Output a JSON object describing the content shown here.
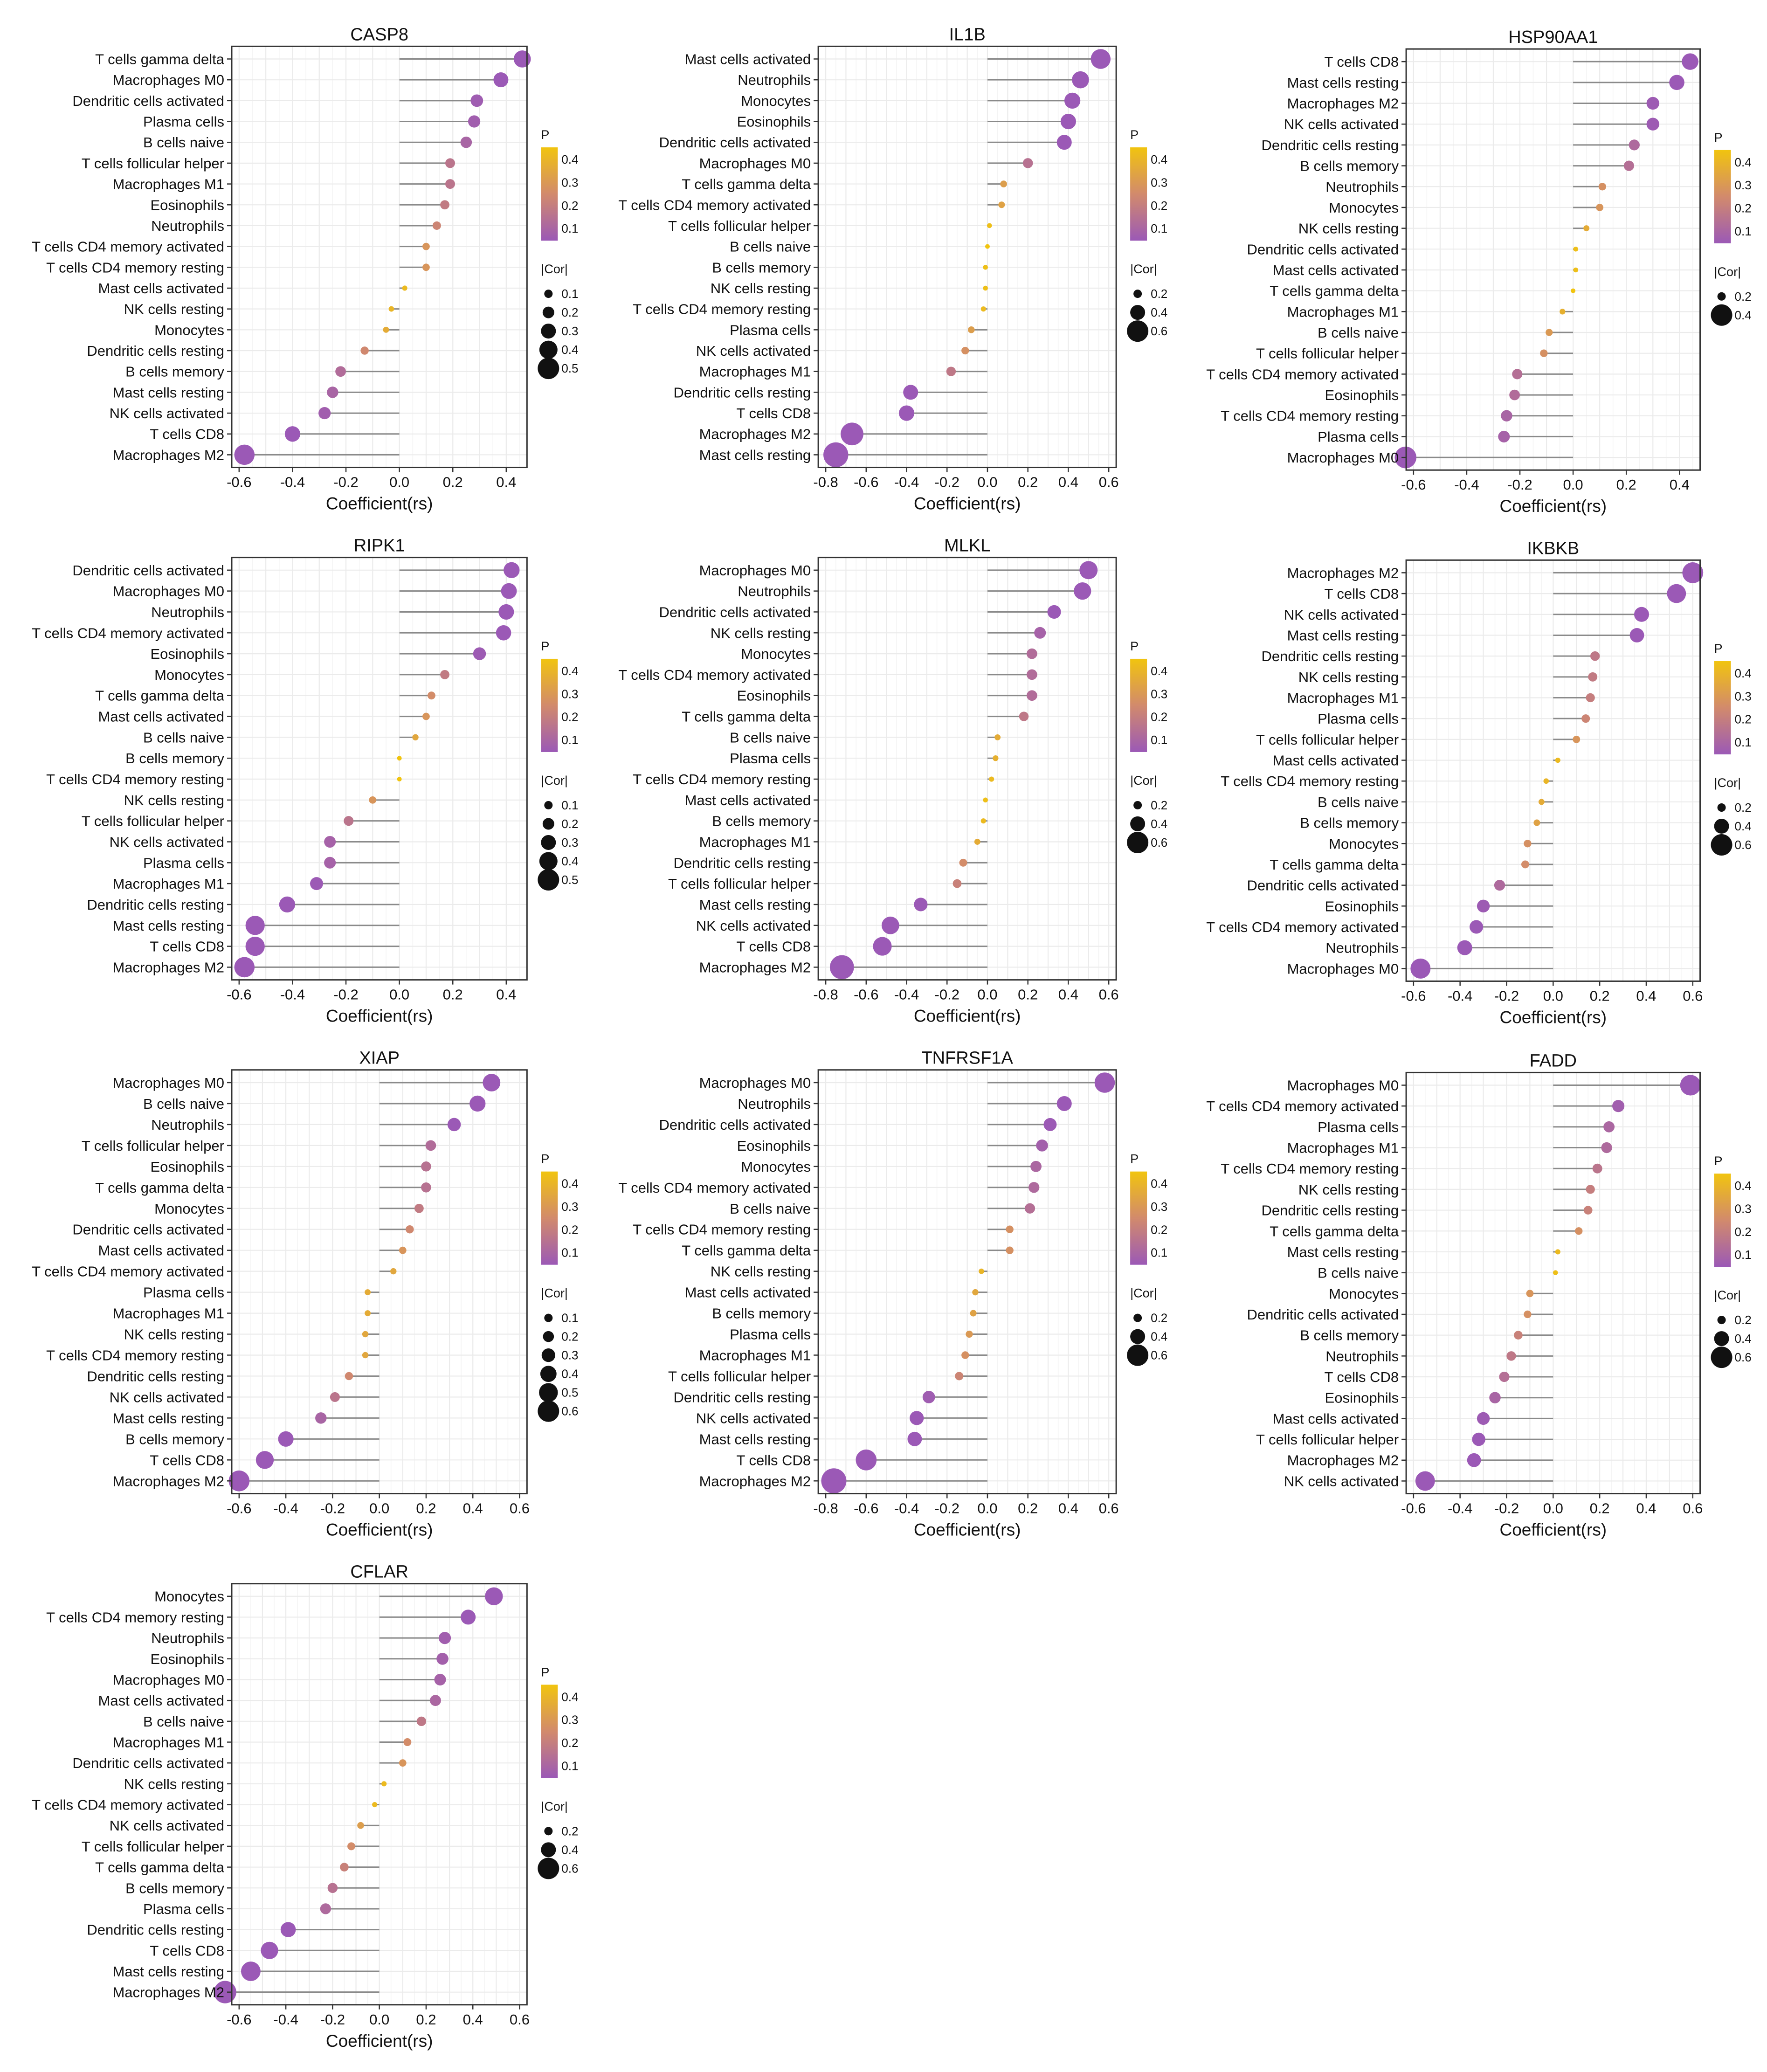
{
  "figure": {
    "xlabel": "Coefficient(rs)",
    "legend_p_title": "P",
    "legend_cor_title": "|Cor|",
    "color_low": "#9b59b6",
    "color_mid": "#d28a6c",
    "color_high": "#f1c40f",
    "lollipop_line_color": "#8a8a8a"
  },
  "chart_data": [
    {
      "type": "lollipop",
      "title": "CASP8",
      "xlim": [
        -0.6,
        0.45
      ],
      "xticks": [
        -0.6,
        -0.4,
        -0.2,
        0.0,
        0.2,
        0.4
      ],
      "categories": [
        "T cells gamma delta",
        "Macrophages M0",
        "Dendritic cells activated",
        "Plasma cells",
        "B cells naive",
        "T cells follicular helper",
        "Macrophages M1",
        "Eosinophils",
        "Neutrophils",
        "T cells CD4 memory activated",
        "T cells CD4 memory resting",
        "Mast cells activated",
        "NK cells resting",
        "Monocytes",
        "Dendritic cells resting",
        "B cells memory",
        "Mast cells resting",
        "NK cells activated",
        "T cells CD8",
        "Macrophages M2"
      ],
      "values": [
        0.46,
        0.38,
        0.29,
        0.28,
        0.25,
        0.19,
        0.19,
        0.17,
        0.14,
        0.1,
        0.1,
        0.02,
        -0.03,
        -0.05,
        -0.13,
        -0.22,
        -0.25,
        -0.28,
        -0.4,
        -0.58
      ],
      "p_legend": [
        "0.4",
        "0.3",
        "0.2",
        "0.1"
      ],
      "cor_legend": [
        "0.1",
        "0.2",
        "0.3",
        "0.4",
        "0.5"
      ]
    },
    {
      "type": "lollipop",
      "title": "IL1B",
      "xlim": [
        -0.8,
        0.6
      ],
      "xticks": [
        -0.8,
        -0.6,
        -0.4,
        -0.2,
        0.0,
        0.2,
        0.4,
        0.6
      ],
      "categories": [
        "Mast cells activated",
        "Neutrophils",
        "Monocytes",
        "Eosinophils",
        "Dendritic cells activated",
        "Macrophages M0",
        "T cells gamma delta",
        "T cells CD4 memory activated",
        "T cells follicular helper",
        "B cells naive",
        "B cells memory",
        "NK cells resting",
        "T cells CD4 memory resting",
        "Plasma cells",
        "NK cells activated",
        "Macrophages M1",
        "Dendritic cells resting",
        "T cells CD8",
        "Macrophages M2",
        "Mast cells resting"
      ],
      "values": [
        0.56,
        0.46,
        0.42,
        0.4,
        0.38,
        0.2,
        0.08,
        0.07,
        0.01,
        0.0,
        -0.01,
        -0.01,
        -0.02,
        -0.08,
        -0.11,
        -0.18,
        -0.38,
        -0.4,
        -0.67,
        -0.75
      ],
      "p_legend": [
        "0.4",
        "0.3",
        "0.2",
        "0.1"
      ],
      "cor_legend": [
        "0.2",
        "0.4",
        "0.6"
      ]
    },
    {
      "type": "lollipop",
      "title": "HSP90AA1",
      "xlim": [
        -0.6,
        0.45
      ],
      "xticks": [
        -0.6,
        -0.4,
        -0.2,
        0.0,
        0.2,
        0.4
      ],
      "categories": [
        "T cells CD8",
        "Mast cells resting",
        "Macrophages M2",
        "NK cells activated",
        "Dendritic cells resting",
        "B cells memory",
        "Neutrophils",
        "Monocytes",
        "NK cells resting",
        "Dendritic cells activated",
        "Mast cells activated",
        "T cells gamma delta",
        "Macrophages M1",
        "B cells naive",
        "T cells follicular helper",
        "T cells CD4 memory activated",
        "Eosinophils",
        "T cells CD4 memory resting",
        "Plasma cells",
        "Macrophages M0"
      ],
      "values": [
        0.44,
        0.39,
        0.3,
        0.3,
        0.23,
        0.21,
        0.11,
        0.1,
        0.05,
        0.01,
        0.01,
        0.0,
        -0.04,
        -0.09,
        -0.11,
        -0.21,
        -0.22,
        -0.25,
        -0.26,
        -0.63
      ],
      "p_legend": [
        "0.4",
        "0.3",
        "0.2",
        "0.1"
      ],
      "cor_legend": [
        "0.2",
        "0.4"
      ]
    },
    {
      "type": "lollipop",
      "title": "RIPK1",
      "xlim": [
        -0.6,
        0.45
      ],
      "xticks": [
        -0.6,
        -0.4,
        -0.2,
        0.0,
        0.2,
        0.4
      ],
      "categories": [
        "Dendritic cells activated",
        "Macrophages M0",
        "Neutrophils",
        "T cells CD4 memory activated",
        "Eosinophils",
        "Monocytes",
        "T cells gamma delta",
        "Mast cells activated",
        "B cells naive",
        "B cells memory",
        "T cells CD4 memory resting",
        "NK cells resting",
        "T cells follicular helper",
        "NK cells activated",
        "Plasma cells",
        "Macrophages M1",
        "Dendritic cells resting",
        "Mast cells resting",
        "T cells CD8",
        "Macrophages M2"
      ],
      "values": [
        0.42,
        0.41,
        0.4,
        0.39,
        0.3,
        0.17,
        0.12,
        0.1,
        0.06,
        0.0,
        0.0,
        -0.1,
        -0.19,
        -0.26,
        -0.26,
        -0.31,
        -0.42,
        -0.54,
        -0.54,
        -0.58
      ],
      "p_legend": [
        "0.4",
        "0.3",
        "0.2",
        "0.1"
      ],
      "cor_legend": [
        "0.1",
        "0.2",
        "0.3",
        "0.4",
        "0.5"
      ]
    },
    {
      "type": "lollipop",
      "title": "MLKL",
      "xlim": [
        -0.8,
        0.6
      ],
      "xticks": [
        -0.8,
        -0.6,
        -0.4,
        -0.2,
        0.0,
        0.2,
        0.4,
        0.6
      ],
      "categories": [
        "Macrophages M0",
        "Neutrophils",
        "Dendritic cells activated",
        "NK cells resting",
        "Monocytes",
        "T cells CD4 memory activated",
        "Eosinophils",
        "T cells gamma delta",
        "B cells naive",
        "Plasma cells",
        "T cells CD4 memory resting",
        "Mast cells activated",
        "B cells memory",
        "Macrophages M1",
        "Dendritic cells resting",
        "T cells follicular helper",
        "Mast cells resting",
        "NK cells activated",
        "T cells CD8",
        "Macrophages M2"
      ],
      "values": [
        0.5,
        0.47,
        0.33,
        0.26,
        0.22,
        0.22,
        0.22,
        0.18,
        0.05,
        0.04,
        0.02,
        -0.01,
        -0.02,
        -0.05,
        -0.12,
        -0.15,
        -0.33,
        -0.48,
        -0.52,
        -0.72
      ],
      "p_legend": [
        "0.4",
        "0.3",
        "0.2",
        "0.1"
      ],
      "cor_legend": [
        "0.2",
        "0.4",
        "0.6"
      ]
    },
    {
      "type": "lollipop",
      "title": "IKBKB",
      "xlim": [
        -0.6,
        0.6
      ],
      "xticks": [
        -0.6,
        -0.4,
        -0.2,
        0.0,
        0.2,
        0.4,
        0.6
      ],
      "categories": [
        "Macrophages M2",
        "T cells CD8",
        "NK cells activated",
        "Mast cells resting",
        "Dendritic cells resting",
        "NK cells resting",
        "Macrophages M1",
        "Plasma cells",
        "T cells follicular helper",
        "Mast cells activated",
        "T cells CD4 memory resting",
        "B cells naive",
        "B cells memory",
        "Monocytes",
        "T cells gamma delta",
        "Dendritic cells activated",
        "Eosinophils",
        "T cells CD4 memory activated",
        "Neutrophils",
        "Macrophages M0"
      ],
      "values": [
        0.6,
        0.53,
        0.38,
        0.36,
        0.18,
        0.17,
        0.16,
        0.14,
        0.1,
        0.02,
        -0.03,
        -0.05,
        -0.07,
        -0.11,
        -0.12,
        -0.23,
        -0.3,
        -0.33,
        -0.38,
        -0.57
      ],
      "p_legend": [
        "0.4",
        "0.3",
        "0.2",
        "0.1"
      ],
      "cor_legend": [
        "0.2",
        "0.4",
        "0.6"
      ]
    },
    {
      "type": "lollipop",
      "title": "XIAP",
      "xlim": [
        -0.6,
        0.6
      ],
      "xticks": [
        -0.6,
        -0.4,
        -0.2,
        0.0,
        0.2,
        0.4,
        0.6
      ],
      "categories": [
        "Macrophages M0",
        "B cells naive",
        "Neutrophils",
        "T cells follicular helper",
        "Eosinophils",
        "T cells gamma delta",
        "Monocytes",
        "Dendritic cells activated",
        "Mast cells activated",
        "T cells CD4 memory activated",
        "Plasma cells",
        "Macrophages M1",
        "NK cells resting",
        "T cells CD4 memory resting",
        "Dendritic cells resting",
        "NK cells activated",
        "Mast cells resting",
        "B cells memory",
        "T cells CD8",
        "Macrophages M2"
      ],
      "values": [
        0.48,
        0.42,
        0.32,
        0.22,
        0.2,
        0.2,
        0.17,
        0.13,
        0.1,
        0.06,
        -0.05,
        -0.05,
        -0.06,
        -0.06,
        -0.13,
        -0.19,
        -0.25,
        -0.4,
        -0.49,
        -0.6
      ],
      "p_legend": [
        "0.4",
        "0.3",
        "0.2",
        "0.1"
      ],
      "cor_legend": [
        "0.1",
        "0.2",
        "0.3",
        "0.4",
        "0.5",
        "0.6"
      ]
    },
    {
      "type": "lollipop",
      "title": "TNFRSF1A",
      "xlim": [
        -0.8,
        0.6
      ],
      "xticks": [
        -0.8,
        -0.6,
        -0.4,
        -0.2,
        0.0,
        0.2,
        0.4,
        0.6
      ],
      "categories": [
        "Macrophages M0",
        "Neutrophils",
        "Dendritic cells activated",
        "Eosinophils",
        "Monocytes",
        "T cells CD4 memory activated",
        "B cells naive",
        "T cells CD4 memory resting",
        "T cells gamma delta",
        "NK cells resting",
        "Mast cells activated",
        "B cells memory",
        "Plasma cells",
        "Macrophages M1",
        "T cells follicular helper",
        "Dendritic cells resting",
        "NK cells activated",
        "Mast cells resting",
        "T cells CD8",
        "Macrophages M2"
      ],
      "values": [
        0.58,
        0.38,
        0.31,
        0.27,
        0.24,
        0.23,
        0.21,
        0.11,
        0.11,
        -0.03,
        -0.06,
        -0.07,
        -0.09,
        -0.11,
        -0.14,
        -0.29,
        -0.35,
        -0.36,
        -0.6,
        -0.76
      ],
      "p_legend": [
        "0.4",
        "0.3",
        "0.2",
        "0.1"
      ],
      "cor_legend": [
        "0.2",
        "0.4",
        "0.6"
      ]
    },
    {
      "type": "lollipop",
      "title": "FADD",
      "xlim": [
        -0.6,
        0.6
      ],
      "xticks": [
        -0.6,
        -0.4,
        -0.2,
        0.0,
        0.2,
        0.4,
        0.6
      ],
      "categories": [
        "Macrophages M0",
        "T cells CD4 memory activated",
        "Plasma cells",
        "Macrophages M1",
        "T cells CD4 memory resting",
        "NK cells resting",
        "Dendritic cells resting",
        "T cells gamma delta",
        "Mast cells resting",
        "B cells naive",
        "Monocytes",
        "Dendritic cells activated",
        "B cells memory",
        "Neutrophils",
        "T cells CD8",
        "Eosinophils",
        "Mast cells activated",
        "T cells follicular helper",
        "Macrophages M2",
        "NK cells activated"
      ],
      "values": [
        0.59,
        0.28,
        0.24,
        0.23,
        0.19,
        0.16,
        0.15,
        0.11,
        0.02,
        0.01,
        -0.1,
        -0.11,
        -0.15,
        -0.18,
        -0.21,
        -0.25,
        -0.3,
        -0.32,
        -0.34,
        -0.55
      ],
      "p_legend": [
        "0.4",
        "0.3",
        "0.2",
        "0.1"
      ],
      "cor_legend": [
        "0.2",
        "0.4",
        "0.6"
      ]
    },
    {
      "type": "lollipop",
      "title": "CFLAR",
      "xlim": [
        -0.6,
        0.6
      ],
      "xticks": [
        -0.6,
        -0.4,
        -0.2,
        0.0,
        0.2,
        0.4,
        0.6
      ],
      "categories": [
        "Monocytes",
        "T cells CD4 memory resting",
        "Neutrophils",
        "Eosinophils",
        "Macrophages M0",
        "Mast cells activated",
        "B cells naive",
        "Macrophages M1",
        "Dendritic cells activated",
        "NK cells resting",
        "T cells CD4 memory activated",
        "NK cells activated",
        "T cells follicular helper",
        "T cells gamma delta",
        "B cells memory",
        "Plasma cells",
        "Dendritic cells resting",
        "T cells CD8",
        "Mast cells resting",
        "Macrophages M2"
      ],
      "values": [
        0.49,
        0.38,
        0.28,
        0.27,
        0.26,
        0.24,
        0.18,
        0.12,
        0.1,
        0.02,
        -0.02,
        -0.08,
        -0.12,
        -0.15,
        -0.2,
        -0.23,
        -0.39,
        -0.47,
        -0.55,
        -0.66
      ],
      "p_legend": [
        "0.4",
        "0.3",
        "0.2",
        "0.1"
      ],
      "cor_legend": [
        "0.2",
        "0.4",
        "0.6"
      ]
    }
  ]
}
